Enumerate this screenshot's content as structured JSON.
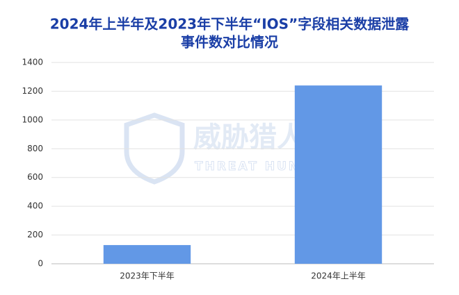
{
  "chart_data": {
    "type": "bar",
    "title": [
      "2024年上半年及2023年下半年“IOS”字段相关数据泄露",
      "事件数对比情况"
    ],
    "categories": [
      "2023年下半年",
      "2024年上半年"
    ],
    "values": [
      130,
      1240
    ],
    "color": "#6298e6",
    "ylim": [
      0,
      1400
    ],
    "yticks": [
      0,
      200,
      400,
      600,
      800,
      1000,
      1200,
      1400
    ],
    "grid": true,
    "watermark": [
      "威胁猎人",
      "THREAT HUNTER"
    ]
  }
}
